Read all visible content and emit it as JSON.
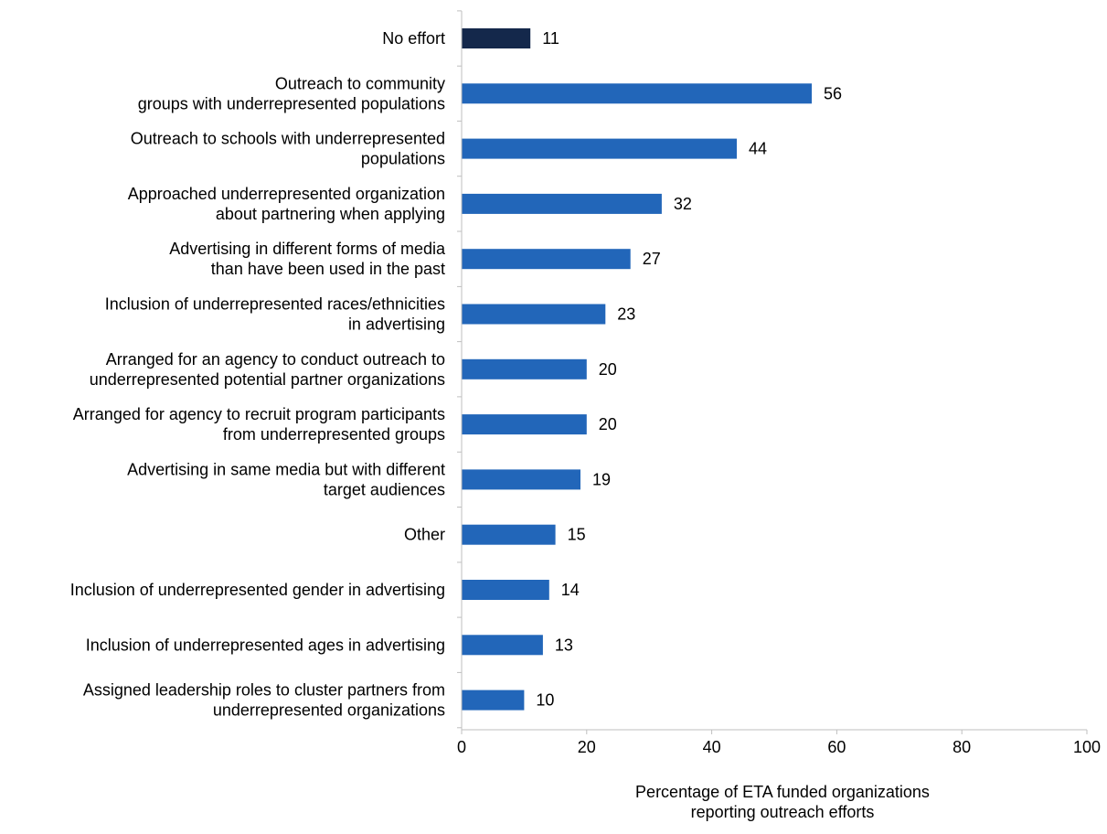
{
  "chart_data": {
    "type": "bar",
    "orientation": "horizontal",
    "title": "",
    "xlabel": "Percentage of ETA funded organizations reporting outreach efforts",
    "xlabel_lines": [
      "Percentage of ETA funded organizations",
      "reporting outreach efforts"
    ],
    "ylabel": "",
    "xlim": [
      0,
      100
    ],
    "x_ticks": [
      0,
      20,
      40,
      60,
      80,
      100
    ],
    "grid": false,
    "legend": "none",
    "data_labels": true,
    "colors": {
      "highlight": "#14284b",
      "default": "#2266b9",
      "axis": "#bfbfbf"
    },
    "categories": [
      {
        "label_lines": [
          "No effort"
        ],
        "value": 11,
        "color": "highlight"
      },
      {
        "label_lines": [
          "Outreach to community",
          "groups with underrepresented populations"
        ],
        "value": 56,
        "color": "default"
      },
      {
        "label_lines": [
          "Outreach to schools with underrepresented",
          "populations"
        ],
        "value": 44,
        "color": "default"
      },
      {
        "label_lines": [
          "Approached underrepresented organization",
          "about partnering when applying"
        ],
        "value": 32,
        "color": "default"
      },
      {
        "label_lines": [
          "Advertising in different forms of media",
          "than have been used in the past"
        ],
        "value": 27,
        "color": "default"
      },
      {
        "label_lines": [
          "Inclusion of underrepresented races/ethnicities",
          "in advertising"
        ],
        "value": 23,
        "color": "default"
      },
      {
        "label_lines": [
          "Arranged for an agency to conduct outreach to",
          "underrepresented potential partner organizations"
        ],
        "value": 20,
        "color": "default"
      },
      {
        "label_lines": [
          "Arranged for agency to recruit program participants",
          "from underrepresented groups"
        ],
        "value": 20,
        "color": "default"
      },
      {
        "label_lines": [
          "Advertising in same media but with different",
          "target audiences"
        ],
        "value": 19,
        "color": "default"
      },
      {
        "label_lines": [
          "Other"
        ],
        "value": 15,
        "color": "default"
      },
      {
        "label_lines": [
          "Inclusion of underrepresented gender in advertising"
        ],
        "value": 14,
        "color": "default"
      },
      {
        "label_lines": [
          "Inclusion of underrepresented ages in advertising"
        ],
        "value": 13,
        "color": "default"
      },
      {
        "label_lines": [
          "Assigned leadership roles to cluster partners from",
          "underrepresented organizations"
        ],
        "value": 10,
        "color": "default"
      }
    ]
  }
}
